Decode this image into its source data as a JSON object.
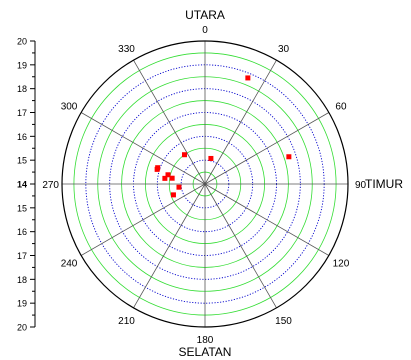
{
  "chart_data": {
    "type": "scatter",
    "coordinate_system": "polar",
    "direction_labels": {
      "north": "UTARA",
      "east": "TIMUR",
      "south": "SELATAN"
    },
    "angle_ticks": [
      "0",
      "30",
      "60",
      "90",
      "120",
      "150",
      "180",
      "210",
      "240",
      "270",
      "300",
      "330"
    ],
    "radial_axis": {
      "center_value": 14,
      "outer_value": 20,
      "range": [
        14,
        20
      ],
      "ticks_upper": [
        "20",
        "19",
        "18",
        "17",
        "16",
        "15",
        "14"
      ],
      "ticks_lower": [
        "15",
        "16",
        "17",
        "18",
        "19",
        "20"
      ]
    },
    "grid": {
      "spokes_every_degrees": 30,
      "major_rings": [
        15,
        16,
        17,
        18,
        19
      ],
      "minor_rings": [
        14.5,
        15.5,
        16.5,
        17.5,
        18.5,
        19.5
      ]
    },
    "colors": {
      "marker": "#ff0000",
      "major_ring": "#0000cc",
      "minor_ring": "#33dd33",
      "spoke": "#555555",
      "axis": "#000000"
    },
    "series": [
      {
        "marker": "square",
        "points": [
          {
            "angle": 22,
            "value": 18.8
          },
          {
            "angle": 72,
            "value": 17.7
          },
          {
            "angle": 13,
            "value": 15.1
          },
          {
            "angle": 325,
            "value": 15.5
          },
          {
            "angle": 289,
            "value": 16.1
          },
          {
            "angle": 287,
            "value": 16.1
          },
          {
            "angle": 280,
            "value": 15.4
          },
          {
            "angle": 284,
            "value": 15.6
          },
          {
            "angle": 278,
            "value": 15.7
          },
          {
            "angle": 263,
            "value": 15.1
          },
          {
            "angle": 251,
            "value": 15.4
          }
        ]
      }
    ]
  }
}
